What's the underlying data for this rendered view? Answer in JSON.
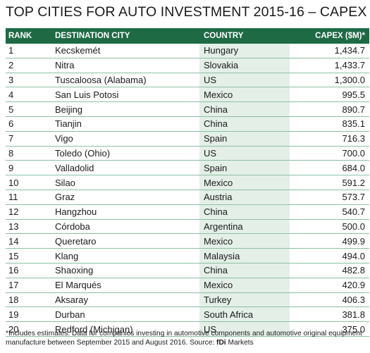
{
  "title": "TOP CITIES FOR AUTO INVESTMENT 2015-16 – CAPEX",
  "chart_data": {
    "type": "table",
    "columns": [
      "RANK",
      "DESTINATION CITY",
      "COUNTRY",
      "CAPEX ($M)*"
    ],
    "rows": [
      [
        "1",
        "Kecskemét",
        "Hungary",
        "1,434.7"
      ],
      [
        "2",
        "Nitra",
        "Slovakia",
        "1,433.7"
      ],
      [
        "3",
        "Tuscaloosa (Alabama)",
        "US",
        "1,300.0"
      ],
      [
        "4",
        "San Luis Potosi",
        "Mexico",
        "995.5"
      ],
      [
        "5",
        "Beijing",
        "China",
        "890.7"
      ],
      [
        "6",
        "Tianjin",
        "China",
        "835.1"
      ],
      [
        "7",
        "Vigo",
        "Spain",
        "716.3"
      ],
      [
        "8",
        "Toledo (Ohio)",
        "US",
        "700.0"
      ],
      [
        "9",
        "Valladolid",
        "Spain",
        "684.0"
      ],
      [
        "10",
        "Silao",
        "Mexico",
        "591.2"
      ],
      [
        "11",
        "Graz",
        "Austria",
        "573.7"
      ],
      [
        "12",
        "Hangzhou",
        "China",
        "540.7"
      ],
      [
        "13",
        "Córdoba",
        "Argentina",
        "500.0"
      ],
      [
        "14",
        "Queretaro",
        "Mexico",
        "499.9"
      ],
      [
        "15",
        "Klang",
        "Malaysia",
        "494.0"
      ],
      [
        "16",
        "Shaoxing",
        "China",
        "482.8"
      ],
      [
        "17",
        "El Marqués",
        "Mexico",
        "420.9"
      ],
      [
        "18",
        "Aksaray",
        "Turkey",
        "406.3"
      ],
      [
        "19",
        "Durban",
        "South Africa",
        "381.8"
      ],
      [
        "20",
        "Redford (Michigan)",
        "US",
        "375.0"
      ]
    ]
  },
  "footnote": {
    "text": "*Includes estimates. Data for companies investing in automotive components and automotive original equipment manufacture between September 2015 and August 2016. Source: ",
    "source_brand": "fDi",
    "source_suffix": " Markets"
  },
  "colors": {
    "header_background": "#1e6a45",
    "country_column_background": "#e4efe8",
    "row_divider": "#8cbfa3"
  }
}
